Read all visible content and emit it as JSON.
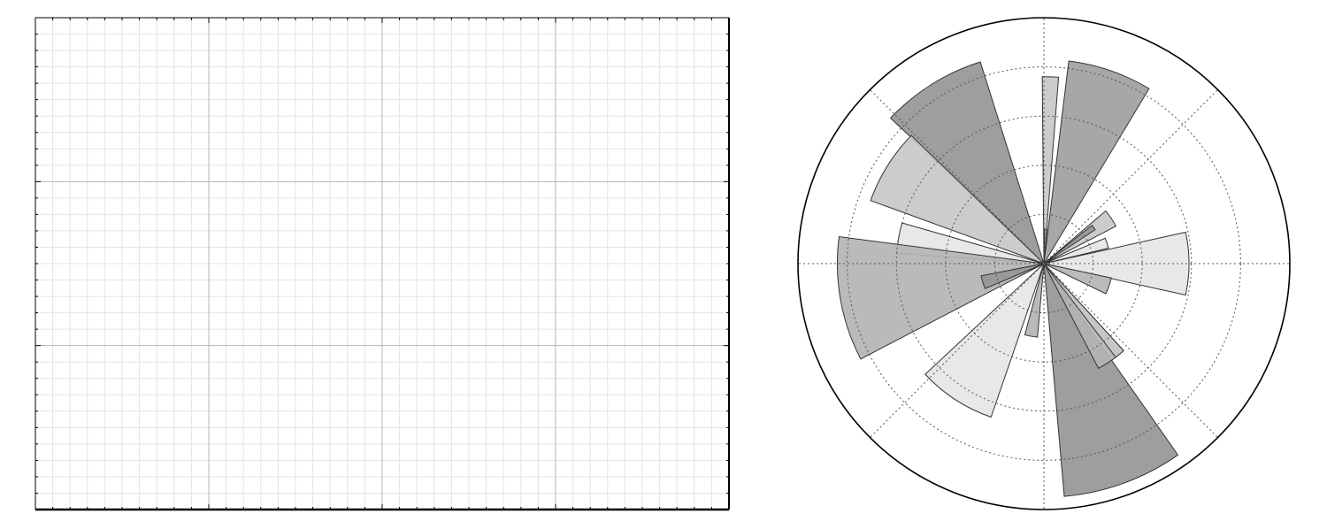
{
  "chart_data": [
    {
      "type": "line",
      "title": "",
      "xlabel": "",
      "ylabel": "",
      "xlim": [
        0,
        4
      ],
      "ylim": [
        0,
        3
      ],
      "grid": "major-and-minor",
      "major_xticks": 4,
      "major_yticks": 3,
      "minor_per_major": 10,
      "series": []
    },
    {
      "type": "polar-bar",
      "title": "",
      "r_max": 1,
      "rings": [
        0.2,
        0.4,
        0.6,
        0.8
      ],
      "spoke_angles_deg": [
        0,
        45,
        90,
        135,
        180,
        225,
        270,
        315
      ],
      "grid": "dotted",
      "colors": {
        "light": "#e6e6e6",
        "mid": "#c8c8c8",
        "medium": "#b4b4b4",
        "dark": "#a0a0a0",
        "darker": "#969696",
        "edge": "#333333",
        "border": "#000000"
      },
      "bars": [
        {
          "theta": 0,
          "radius": 0.59,
          "width": 25,
          "color": "light"
        },
        {
          "theta": 18,
          "radius": 0.27,
          "width": 9,
          "color": "light"
        },
        {
          "theta": 34,
          "radius": 0.33,
          "width": 13,
          "color": "mid"
        },
        {
          "theta": 36,
          "radius": 0.25,
          "width": 5,
          "color": "darker"
        },
        {
          "theta": 71,
          "radius": 0.83,
          "width": 24,
          "color": "dark"
        },
        {
          "theta": 88,
          "radius": 0.76,
          "width": 5,
          "color": "mid"
        },
        {
          "theta": 87,
          "radius": 0.14,
          "width": 4,
          "color": "darker"
        },
        {
          "theta": 122,
          "radius": 0.86,
          "width": 29,
          "color": "darker"
        },
        {
          "theta": 148,
          "radius": 0.75,
          "width": 24,
          "color": "mid"
        },
        {
          "theta": 170,
          "radius": 0.6,
          "width": 12,
          "color": "light"
        },
        {
          "theta": 190,
          "radius": 0.84,
          "width": 35,
          "color": "medium"
        },
        {
          "theta": 197,
          "radius": 0.26,
          "width": 12,
          "color": "darker"
        },
        {
          "theta": 237,
          "radius": 0.66,
          "width": 28,
          "color": "light"
        },
        {
          "theta": 260,
          "radius": 0.3,
          "width": 10,
          "color": "medium"
        },
        {
          "theta": 290,
          "radius": 0.95,
          "width": 30,
          "color": "darker"
        },
        {
          "theta": 305,
          "radius": 0.48,
          "width": 15,
          "color": "medium"
        },
        {
          "theta": 310,
          "radius": 0.48,
          "width": 5,
          "color": "mid"
        },
        {
          "theta": 341,
          "radius": 0.28,
          "width": 14,
          "color": "medium"
        }
      ]
    }
  ]
}
